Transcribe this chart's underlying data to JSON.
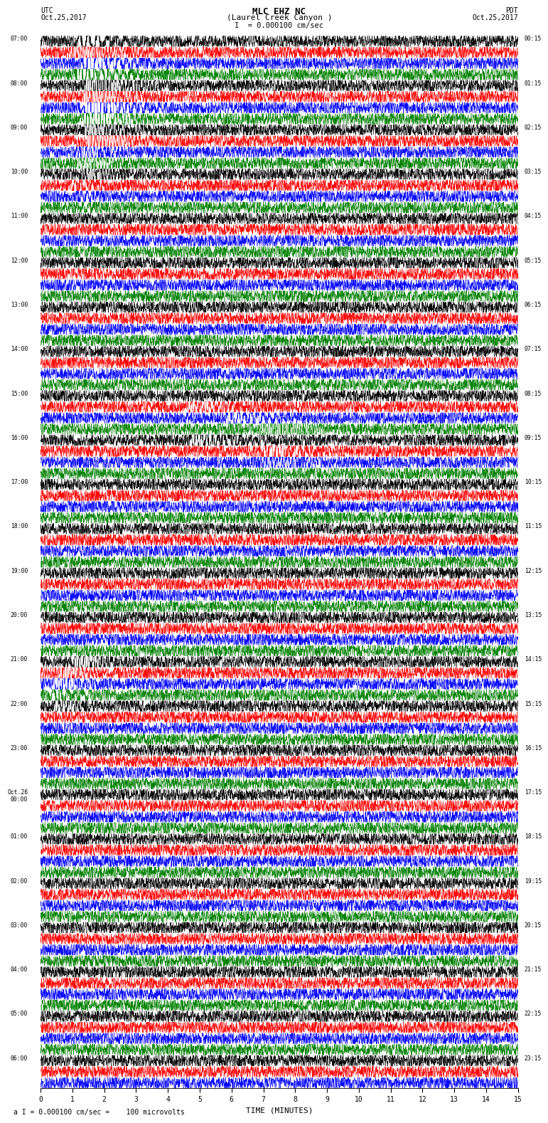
{
  "title_line1": "MLC EHZ NC",
  "title_line2": "(Laurel Creek Canyon )",
  "scale_text": "I  = 0.000100 cm/sec",
  "left_header": "UTC",
  "left_date": "Oct.25,2017",
  "right_header": "PDT",
  "right_date": "Oct.25,2017",
  "footer_text": "a I = 0.000100 cm/sec =    100 microvolts",
  "xlabel": "TIME (MINUTES)",
  "xlim": [
    0,
    15
  ],
  "xticks": [
    0,
    1,
    2,
    3,
    4,
    5,
    6,
    7,
    8,
    9,
    10,
    11,
    12,
    13,
    14,
    15
  ],
  "trace_colors": [
    "black",
    "red",
    "blue",
    "green"
  ],
  "left_times_utc": [
    "07:00",
    "",
    "",
    "",
    "08:00",
    "",
    "",
    "",
    "09:00",
    "",
    "",
    "",
    "10:00",
    "",
    "",
    "",
    "11:00",
    "",
    "",
    "",
    "12:00",
    "",
    "",
    "",
    "13:00",
    "",
    "",
    "",
    "14:00",
    "",
    "",
    "",
    "15:00",
    "",
    "",
    "",
    "16:00",
    "",
    "",
    "",
    "17:00",
    "",
    "",
    "",
    "18:00",
    "",
    "",
    "",
    "19:00",
    "",
    "",
    "",
    "20:00",
    "",
    "",
    "",
    "21:00",
    "",
    "",
    "",
    "22:00",
    "",
    "",
    "",
    "23:00",
    "",
    "",
    "",
    "Oct.26\n00:00",
    "",
    "",
    "",
    "01:00",
    "",
    "",
    "",
    "02:00",
    "",
    "",
    "",
    "03:00",
    "",
    "",
    "",
    "04:00",
    "",
    "",
    "",
    "05:00",
    "",
    "",
    "",
    "06:00",
    "",
    ""
  ],
  "right_times_pdt": [
    "00:15",
    "",
    "",
    "",
    "01:15",
    "",
    "",
    "",
    "02:15",
    "",
    "",
    "",
    "03:15",
    "",
    "",
    "",
    "04:15",
    "",
    "",
    "",
    "05:15",
    "",
    "",
    "",
    "06:15",
    "",
    "",
    "",
    "07:15",
    "",
    "",
    "",
    "08:15",
    "",
    "",
    "",
    "09:15",
    "",
    "",
    "",
    "10:15",
    "",
    "",
    "",
    "11:15",
    "",
    "",
    "",
    "12:15",
    "",
    "",
    "",
    "13:15",
    "",
    "",
    "",
    "14:15",
    "",
    "",
    "",
    "15:15",
    "",
    "",
    "",
    "16:15",
    "",
    "",
    "",
    "17:15",
    "",
    "",
    "",
    "18:15",
    "",
    "",
    "",
    "19:15",
    "",
    "",
    "",
    "20:15",
    "",
    "",
    "",
    "21:15",
    "",
    "",
    "",
    "22:15",
    "",
    "",
    "",
    "23:15",
    "",
    ""
  ],
  "background_color": "#ffffff",
  "trace_linewidth": 0.35,
  "seed": 42,
  "fig_width": 8.5,
  "fig_height": 16.13
}
